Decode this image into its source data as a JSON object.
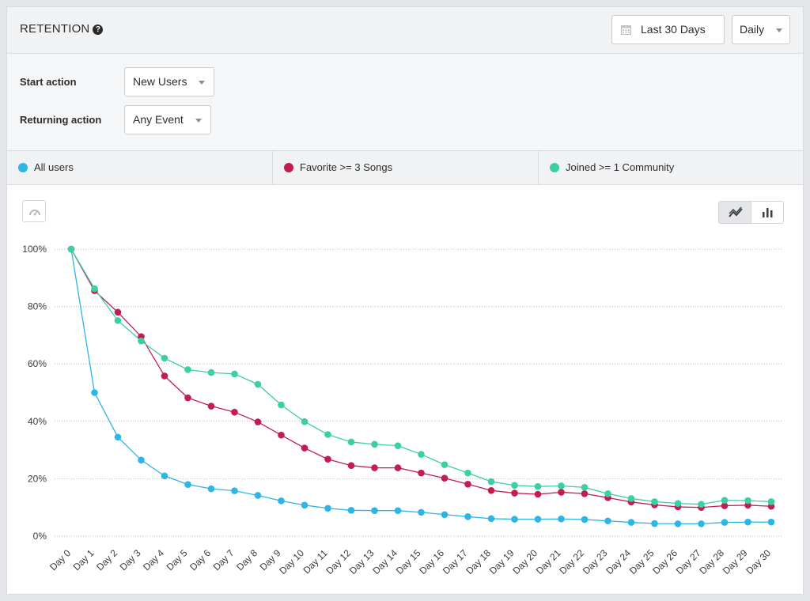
{
  "header": {
    "title": "RETENTION",
    "help_icon": "?",
    "date_range": "Last 30 Days",
    "interval": "Daily"
  },
  "filters": {
    "start_action_label": "Start action",
    "start_action_value": "New Users",
    "returning_action_label": "Returning action",
    "returning_action_value": "Any Event"
  },
  "legend": [
    {
      "label": "All users",
      "color": "#2db5e6"
    },
    {
      "label": "Favorite >= 3 Songs",
      "color": "#c21d4f"
    },
    {
      "label": "Joined >= 1 Community",
      "color": "#3ccfa6"
    }
  ],
  "toolbar": {
    "left_icon": "gauge-icon",
    "line_view_icon": "line-chart-icon",
    "bar_view_icon": "bar-chart-icon"
  },
  "chart_data": {
    "type": "line",
    "categories": [
      "Day 0",
      "Day 1",
      "Day 2",
      "Day 3",
      "Day 4",
      "Day 5",
      "Day 6",
      "Day 7",
      "Day 8",
      "Day 9",
      "Day 10",
      "Day 11",
      "Day 12",
      "Day 13",
      "Day 14",
      "Day 15",
      "Day 16",
      "Day 17",
      "Day 18",
      "Day 19",
      "Day 20",
      "Day 21",
      "Day 22",
      "Day 23",
      "Day 24",
      "Day 25",
      "Day 26",
      "Day 27",
      "Day 28",
      "Day 29",
      "Day 30"
    ],
    "series": [
      {
        "name": "All users",
        "color": "#2db5e6",
        "values": [
          100,
          50,
          34.5,
          26.5,
          21,
          18,
          16.5,
          15.8,
          14.2,
          12.3,
          10.8,
          9.7,
          9.0,
          8.9,
          8.9,
          8.3,
          7.5,
          6.8,
          6.1,
          5.9,
          5.9,
          6.0,
          5.8,
          5.3,
          4.8,
          4.4,
          4.3,
          4.3,
          4.8,
          4.9,
          4.9
        ]
      },
      {
        "name": "Favorite >= 3 Songs",
        "color": "#c21d4f",
        "values": [
          100,
          85.5,
          78,
          69.5,
          55.8,
          48.2,
          45.3,
          43.2,
          39.8,
          35.2,
          30.7,
          26.8,
          24.6,
          23.8,
          23.8,
          22.0,
          20.2,
          18.1,
          15.9,
          15.0,
          14.6,
          15.3,
          14.8,
          13.4,
          11.9,
          10.9,
          10.2,
          10.0,
          10.6,
          10.8,
          10.4
        ]
      },
      {
        "name": "Joined >= 1 Community",
        "color": "#3ccfa6",
        "values": [
          100,
          86.2,
          75.1,
          68.0,
          62.0,
          58.0,
          57.0,
          56.5,
          52.9,
          45.7,
          39.9,
          35.4,
          32.8,
          32.0,
          31.5,
          28.5,
          24.9,
          22.0,
          19.0,
          17.7,
          17.3,
          17.5,
          17.0,
          14.8,
          13.1,
          12.0,
          11.4,
          11.1,
          12.5,
          12.4,
          12.0
        ]
      }
    ],
    "yticks": [
      "0%",
      "20%",
      "40%",
      "60%",
      "80%",
      "100%"
    ],
    "ylim": [
      0,
      100
    ],
    "grid": true
  }
}
